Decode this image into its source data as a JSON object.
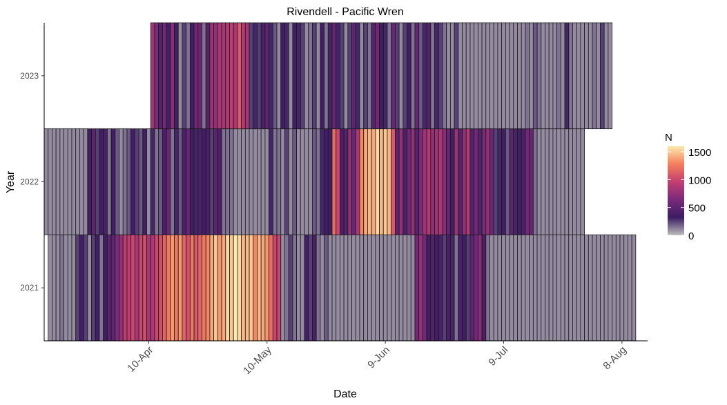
{
  "chart_data": {
    "type": "heatmap",
    "title": "Rivendell - Pacific Wren",
    "xlabel": "Date",
    "ylabel": "Year",
    "x_tick_labels": [
      "10-Apr",
      "10-May",
      "9-Jun",
      "9-Jul",
      "8-Aug"
    ],
    "x_tick_dates": [
      "2021-04-10",
      "2021-05-10",
      "2021-06-09",
      "2021-07-09",
      "2021-08-08"
    ],
    "x_range": [
      "2021-03-15",
      "2021-08-14"
    ],
    "years": [
      "2021",
      "2022",
      "2023"
    ],
    "legend": {
      "title": "N",
      "ticks": [
        0,
        500,
        1000,
        1500
      ],
      "range": [
        0,
        1600
      ],
      "colors": [
        "#bdbdbd",
        "#3b1d63",
        "#7a2a7a",
        "#c23e72",
        "#f47f5c",
        "#fde8ad"
      ]
    },
    "grid": false,
    "legend_position": "right",
    "series": [
      {
        "name": "2021",
        "start_date": "2021-03-16",
        "values": [
          100,
          100,
          100,
          150,
          100,
          100,
          100,
          250,
          350,
          250,
          100,
          250,
          350,
          150,
          350,
          500,
          500,
          650,
          750,
          950,
          950,
          1000,
          850,
          1000,
          1050,
          850,
          850,
          1000,
          1050,
          1150,
          1250,
          1350,
          1250,
          1350,
          1150,
          1050,
          1250,
          1100,
          1150,
          1250,
          1300,
          1400,
          1500,
          1350,
          1400,
          1550,
          1500,
          1600,
          1550,
          1450,
          1450,
          1500,
          1300,
          1450,
          1400,
          1350,
          1200,
          1000,
          1000,
          100,
          150,
          250,
          150,
          100,
          100,
          350,
          250,
          400,
          150,
          100,
          200,
          100,
          100,
          100,
          100,
          100,
          100,
          100,
          100,
          100,
          100,
          100,
          100,
          100,
          100,
          100,
          100,
          100,
          100,
          100,
          100,
          100,
          100,
          600,
          750,
          600,
          350,
          450,
          350,
          400,
          250,
          400,
          300,
          150,
          400,
          350,
          250,
          500,
          600,
          700,
          400,
          150,
          100,
          100,
          100,
          100,
          100,
          100,
          100,
          100,
          100,
          100,
          100,
          100,
          100,
          100,
          100,
          100,
          100,
          100,
          100,
          100,
          100,
          100,
          100,
          100,
          100,
          100,
          100,
          100,
          100,
          100,
          100,
          100,
          100,
          100,
          100,
          100,
          100
        ]
      },
      {
        "name": "2022",
        "start_date": "2021-03-15",
        "values": [
          100,
          100,
          100,
          100,
          100,
          100,
          100,
          100,
          100,
          100,
          100,
          350,
          500,
          250,
          350,
          400,
          150,
          350,
          200,
          100,
          150,
          200,
          350,
          250,
          200,
          350,
          100,
          300,
          150,
          200,
          400,
          550,
          150,
          300,
          200,
          400,
          550,
          350,
          300,
          400,
          350,
          400,
          250,
          500,
          400,
          150,
          150,
          150,
          100,
          100,
          100,
          100,
          100,
          100,
          100,
          100,
          100,
          300,
          150,
          150,
          100,
          250,
          100,
          200,
          100,
          100,
          100,
          100,
          200,
          150,
          300,
          350,
          350,
          1200,
          1000,
          400,
          450,
          750,
          550,
          850,
          1300,
          1400,
          1450,
          1400,
          1550,
          1450,
          1500,
          1450,
          1100,
          500,
          750,
          400,
          600,
          750,
          450,
          650,
          800,
          900,
          750,
          800,
          850,
          700,
          550,
          350,
          800,
          450,
          750,
          900,
          450,
          600,
          450,
          650,
          750,
          550,
          250,
          300,
          350,
          200,
          500,
          300,
          350,
          400,
          600,
          550,
          150,
          100,
          100,
          100,
          100,
          100,
          100,
          100,
          100,
          100,
          100,
          100,
          100,
          null,
          null
        ]
      },
      {
        "name": "2023",
        "start_date": "2021-04-11",
        "values": [
          800,
          650,
          450,
          600,
          350,
          700,
          350,
          100,
          250,
          150,
          350,
          600,
          550,
          150,
          450,
          800,
          750,
          850,
          850,
          900,
          950,
          850,
          1100,
          900,
          850,
          250,
          300,
          250,
          400,
          500,
          300,
          200,
          100,
          350,
          300,
          100,
          350,
          300,
          250,
          100,
          150,
          250,
          100,
          350,
          150,
          300,
          550,
          300,
          250,
          100,
          250,
          500,
          300,
          100,
          250,
          150,
          450,
          600,
          350,
          300,
          150,
          550,
          250,
          100,
          250,
          350,
          150,
          550,
          200,
          300,
          450,
          150,
          300,
          250,
          150,
          100,
          100,
          250,
          100,
          100,
          100,
          100,
          100,
          100,
          100,
          100,
          100,
          100,
          100,
          100,
          100,
          100,
          100,
          100,
          100,
          150,
          100,
          200,
          150,
          100,
          100,
          100,
          100,
          150,
          100,
          300,
          150,
          100,
          100,
          100,
          100,
          100,
          150,
          100,
          250,
          100,
          100
        ]
      }
    ]
  }
}
